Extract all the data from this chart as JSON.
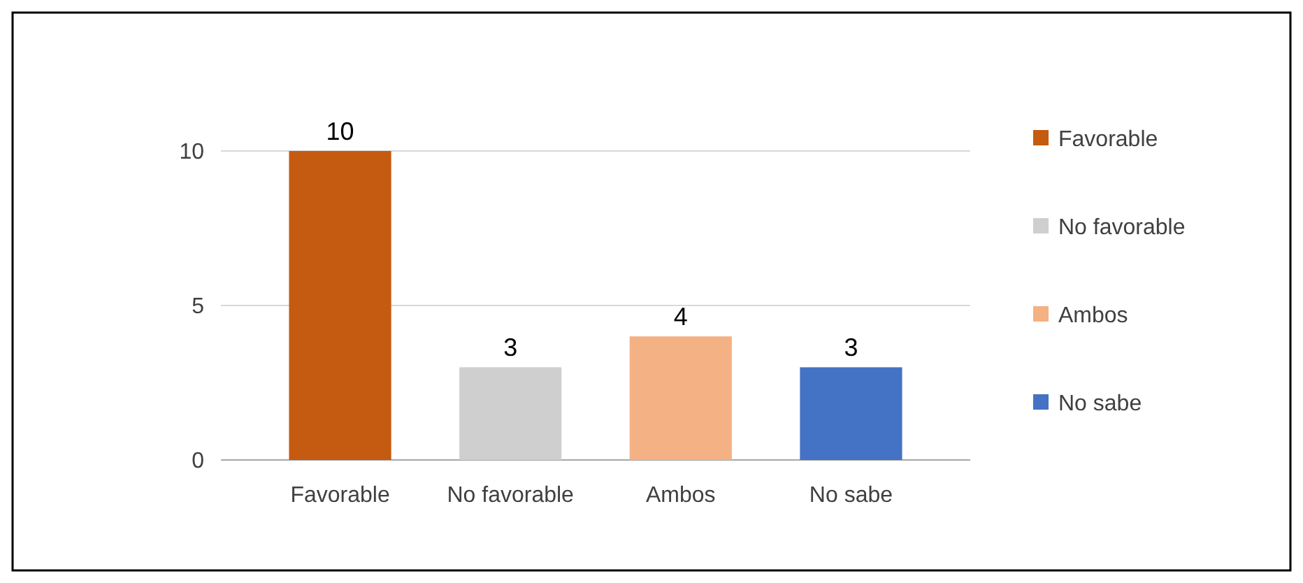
{
  "chart_data": {
    "type": "bar",
    "categories": [
      "Favorable",
      "No favorable",
      "Ambos",
      "No sabe"
    ],
    "series": [
      {
        "name": "Favorable",
        "color": "#c55a11",
        "values": [
          10,
          null,
          null,
          null
        ]
      },
      {
        "name": "No favorable",
        "color": "#cfcfcf",
        "values": [
          null,
          3,
          null,
          null
        ]
      },
      {
        "name": "Ambos",
        "color": "#f4b183",
        "values": [
          null,
          null,
          4,
          null
        ]
      },
      {
        "name": "No sabe",
        "color": "#4472c4",
        "values": [
          null,
          null,
          null,
          3
        ]
      }
    ],
    "ylim": [
      0,
      10
    ],
    "yticks": [
      0,
      5,
      10
    ],
    "grid": "y",
    "data_labels": true,
    "legend": "right"
  }
}
